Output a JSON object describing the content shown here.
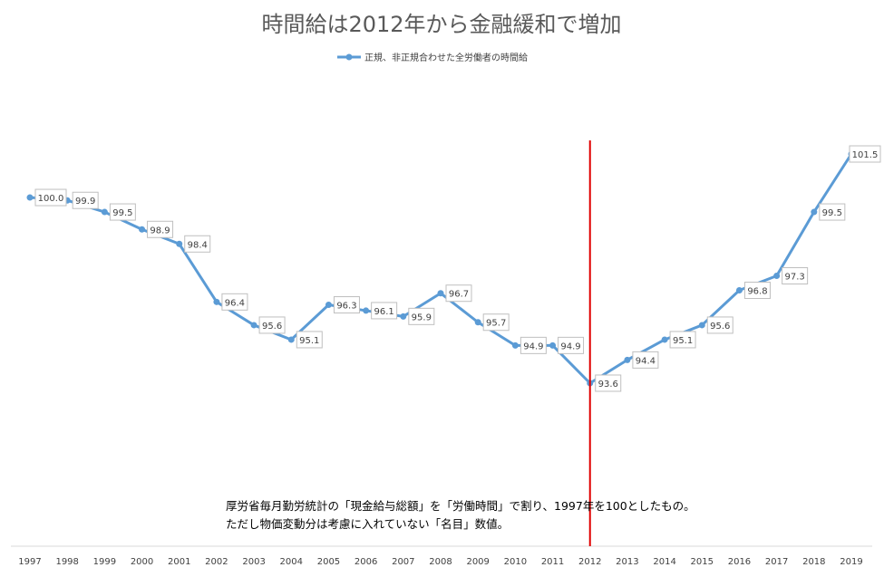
{
  "chart_data": {
    "type": "line",
    "title": "時間給は2012年から金融緩和で増加",
    "categories": [
      "1997",
      "1998",
      "1999",
      "2000",
      "2001",
      "2002",
      "2003",
      "2004",
      "2005",
      "2006",
      "2007",
      "2008",
      "2009",
      "2010",
      "2011",
      "2012",
      "2013",
      "2014",
      "2015",
      "2016",
      "2017",
      "2018",
      "2019"
    ],
    "series": [
      {
        "name": "正規、非正規合わせた全労働者の時間給",
        "values": [
          100.0,
          99.9,
          99.5,
          98.9,
          98.4,
          96.4,
          95.6,
          95.1,
          96.3,
          96.1,
          95.9,
          96.7,
          95.7,
          94.9,
          94.9,
          93.6,
          94.4,
          95.1,
          95.6,
          96.8,
          97.3,
          99.5,
          101.5
        ],
        "labels": [
          "100.0",
          "99.9",
          "99.5",
          "98.9",
          "98.4",
          "96.4",
          "95.6",
          "95.1",
          "96.3",
          "96.1",
          "95.9",
          "96.7",
          "95.7",
          "94.9",
          "94.9",
          "93.6",
          "94.4",
          "95.1",
          "95.6",
          "96.8",
          "97.3",
          "99.5",
          "101.5"
        ],
        "color": "#5b9bd5"
      }
    ],
    "legend_position": "top-center",
    "marker_line": {
      "category": "2012",
      "color": "#e00000"
    },
    "annotation_lines": [
      "厚労省毎月勤労統計の「現金給与総額」を「労働時間」で割り、1997年を100としたもの。",
      "ただし物価変動分は考慮に入れていない「名目」数値。"
    ],
    "y_axis_visible": false,
    "grid": false
  }
}
